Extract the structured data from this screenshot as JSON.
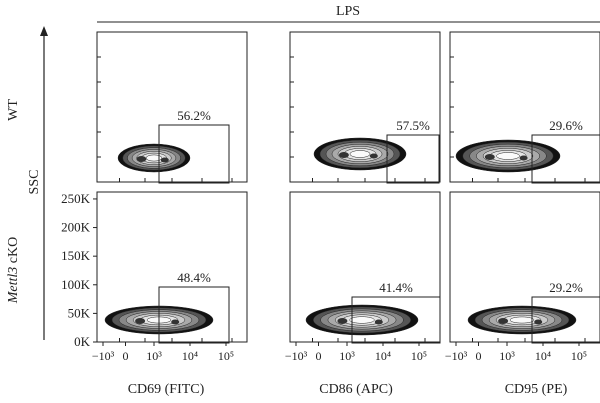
{
  "figure": {
    "top_label": "LPS",
    "y_axis_label": "SSC",
    "row_labels": [
      {
        "text": "WT",
        "italic_part": ""
      },
      {
        "italic_part": "Mettl3",
        "text": " cKO"
      }
    ],
    "x_axis_labels": [
      "CD69 (FITC)",
      "CD86 (APC)",
      "CD95 (PE)"
    ]
  },
  "chart_data": {
    "type": "contour",
    "y_ticks": [
      "250K",
      "200K",
      "150K",
      "100K",
      "50K",
      "0K"
    ],
    "x_ticks": [
      "−10³",
      "0",
      "10³",
      "10⁴",
      "10⁵"
    ],
    "ylim": [
      0,
      262144
    ],
    "panels": [
      {
        "row": "WT",
        "column": "CD69 (FITC)",
        "gate_percent": "56.2%"
      },
      {
        "row": "WT",
        "column": "CD86 (APC)",
        "gate_percent": "57.5%"
      },
      {
        "row": "WT",
        "column": "CD95 (PE)",
        "gate_percent": "29.6%"
      },
      {
        "row": "Mettl3 cKO",
        "column": "CD69 (FITC)",
        "gate_percent": "48.4%"
      },
      {
        "row": "Mettl3 cKO",
        "column": "CD86 (APC)",
        "gate_percent": "41.4%"
      },
      {
        "row": "Mettl3 cKO",
        "column": "CD95 (PE)",
        "gate_percent": "29.2%"
      }
    ]
  }
}
